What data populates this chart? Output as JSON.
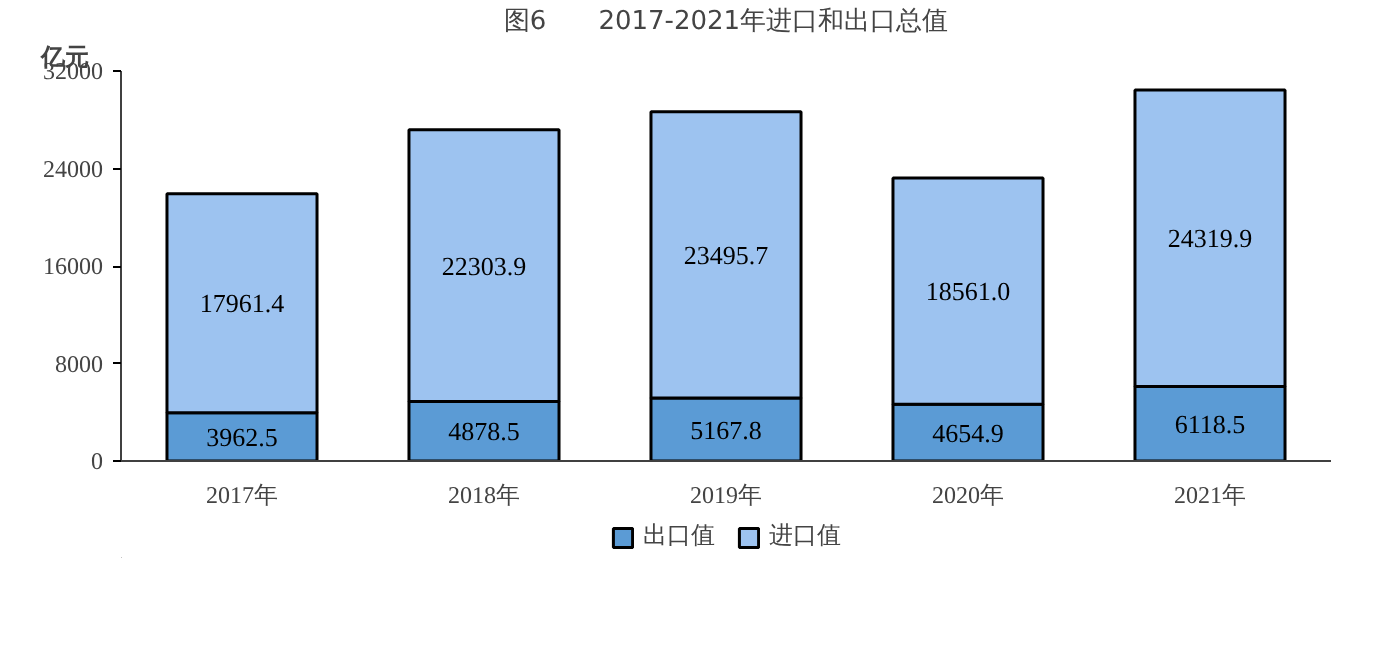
{
  "chart_data": {
    "type": "bar",
    "title": "图6　　2017-2021年进口和出口总值",
    "ylabel": "亿元",
    "categories": [
      "2017年",
      "2018年",
      "2019年",
      "2020年",
      "2021年"
    ],
    "stacked": true,
    "series": [
      {
        "name": "出口值",
        "color": "#5b9bd5",
        "values": [
          3962.5,
          4878.5,
          5167.8,
          4654.9,
          6118.5
        ],
        "value_labels": [
          "3962.5",
          "4878.5",
          "5167.8",
          "4654.9",
          "6118.5"
        ]
      },
      {
        "name": "进口值",
        "color": "#9dc3f0",
        "values": [
          17961.4,
          22303.9,
          23495.7,
          18561,
          24319.9
        ],
        "value_labels": [
          "17961.4",
          "22303.9",
          "23495.7",
          "18561.0",
          "24319.9"
        ]
      }
    ],
    "ylim": [
      0,
      32000
    ],
    "yticks": [
      0,
      8000,
      16000,
      24000,
      32000
    ],
    "legend": "bottom",
    "grid": false
  }
}
